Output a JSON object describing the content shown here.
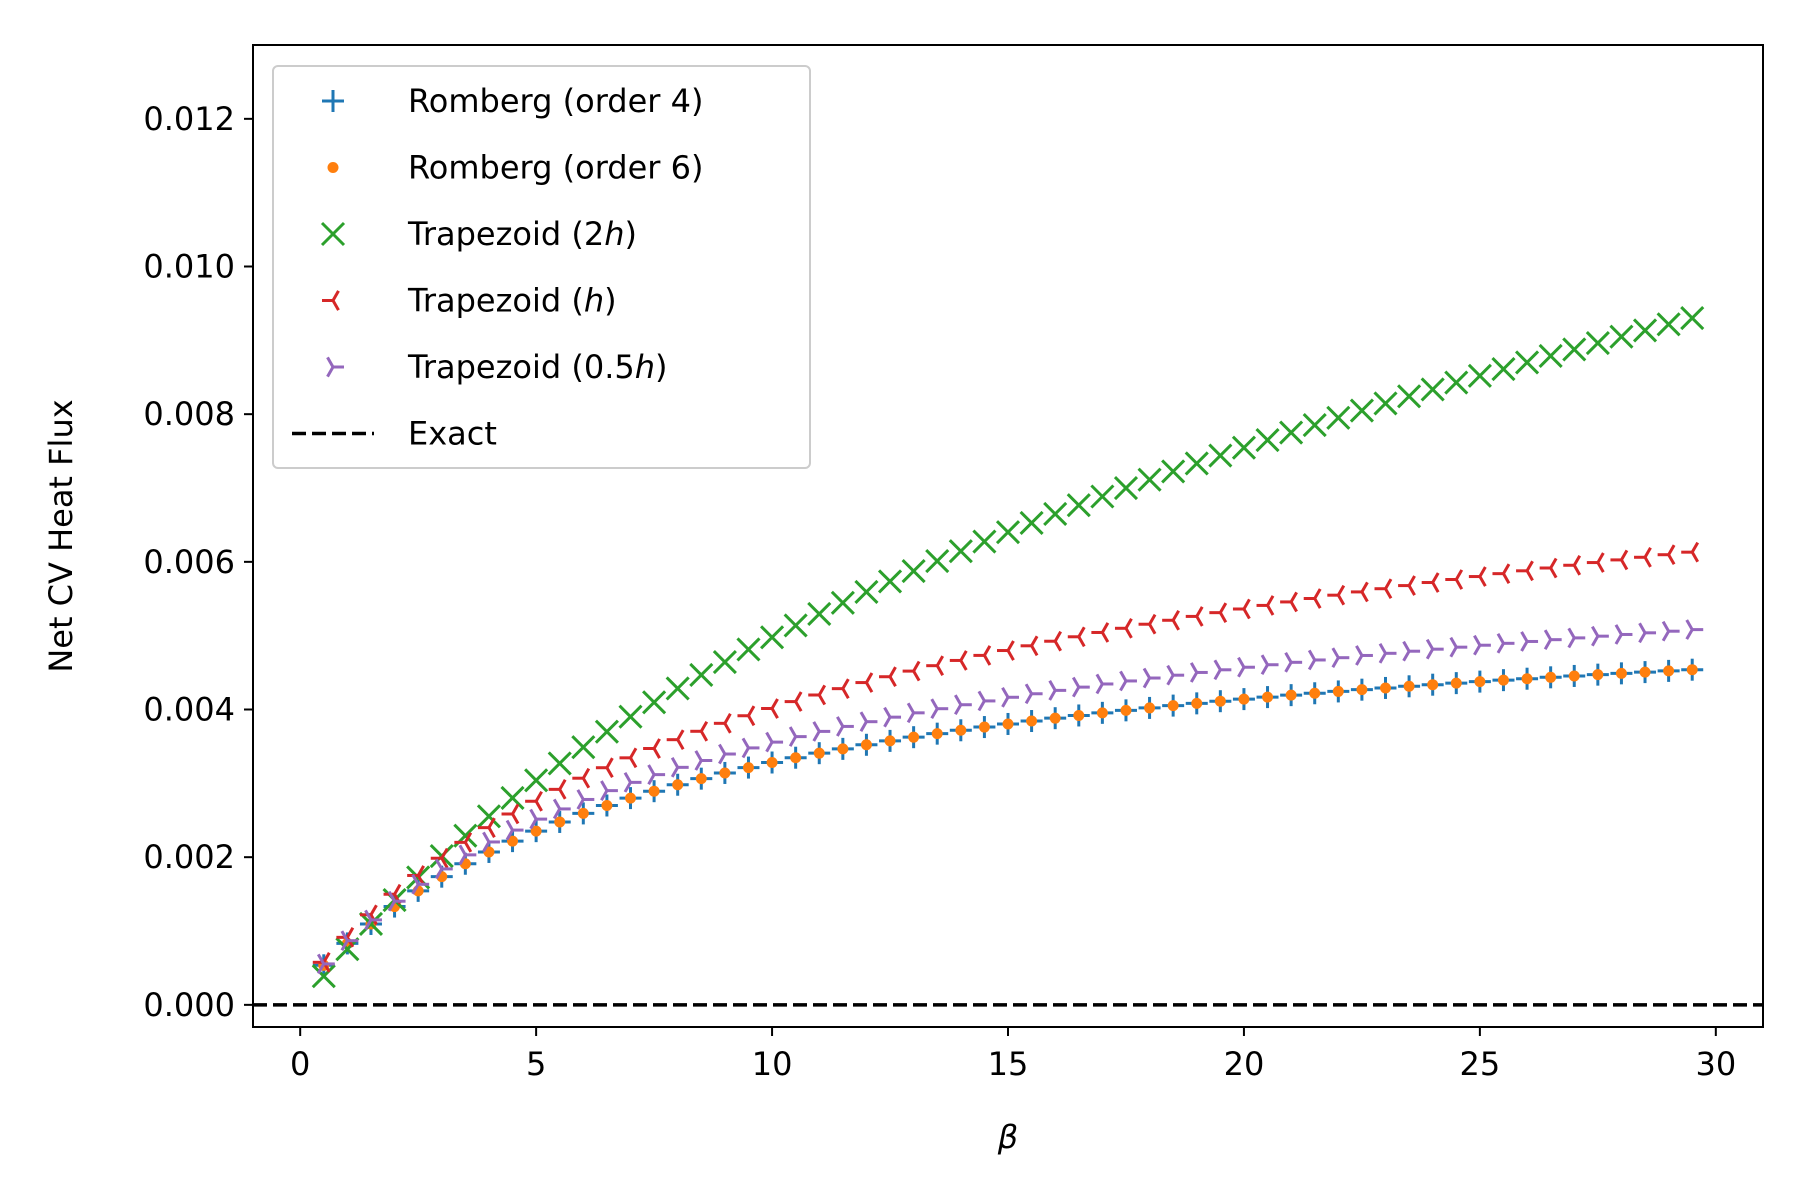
{
  "chart_data": {
    "type": "scatter",
    "title": "",
    "xlabel": "β",
    "ylabel": "Net CV Heat Flux",
    "xlim": [
      -1,
      31
    ],
    "ylim": [
      -0.0003,
      0.013
    ],
    "xticks": [
      0,
      5,
      10,
      15,
      20,
      25,
      30
    ],
    "xtick_labels": [
      "0",
      "5",
      "10",
      "15",
      "20",
      "25",
      "30"
    ],
    "yticks": [
      0,
      0.002,
      0.004,
      0.006,
      0.008,
      0.01,
      0.012
    ],
    "ytick_labels": [
      "0.000",
      "0.002",
      "0.004",
      "0.006",
      "0.008",
      "0.010",
      "0.012"
    ],
    "grid": false,
    "legend_position": "top-left",
    "x": {
      "start": 0.5,
      "stop": 29.5,
      "step": 0.5
    },
    "series": [
      {
        "name": "Romberg (order 4)",
        "name_parts": [
          "Romberg (order 4)"
        ],
        "marker": "plus",
        "color": "#1f77b4",
        "model": {
          "a": 0.0002,
          "b": 0.00535,
          "c": 7.5,
          "tail_slope": 2.5e-06
        }
      },
      {
        "name": "Romberg (order 6)",
        "name_parts": [
          "Romberg (order 6)"
        ],
        "marker": "dot",
        "color": "#ff7f0e",
        "model": {
          "a": 0.0002,
          "b": 0.00535,
          "c": 7.5,
          "tail_slope": 2.5e-06
        }
      },
      {
        "name": "Trapezoid (2h)",
        "name_parts": [
          "Trapezoid (2",
          "h",
          ")"
        ],
        "marker": "x",
        "color": "#2ca02c",
        "model": {
          "a": 0.0,
          "b": 0.00915,
          "c": 13.0,
          "tail_slope": 0.0001
        }
      },
      {
        "name": "Trapezoid (h)",
        "name_parts": [
          "Trapezoid (",
          "h",
          ")"
        ],
        "marker": "tri-left",
        "color": "#d62728",
        "model": {
          "a": 0.0002,
          "b": 0.0065,
          "c": 8.5,
          "tail_slope": 3e-05
        }
      },
      {
        "name": "Trapezoid (0.5h)",
        "name_parts": [
          "Trapezoid (0.5",
          "h",
          ")"
        ],
        "marker": "tri-right",
        "color": "#9467bd",
        "model": {
          "a": 0.0002,
          "b": 0.0058,
          "c": 7.8,
          "tail_slope": 1e-05
        }
      },
      {
        "name": "Exact",
        "name_parts": [
          "Exact"
        ],
        "marker": "dashed-line",
        "color": "#000000",
        "values": [
          0.0
        ]
      }
    ]
  }
}
